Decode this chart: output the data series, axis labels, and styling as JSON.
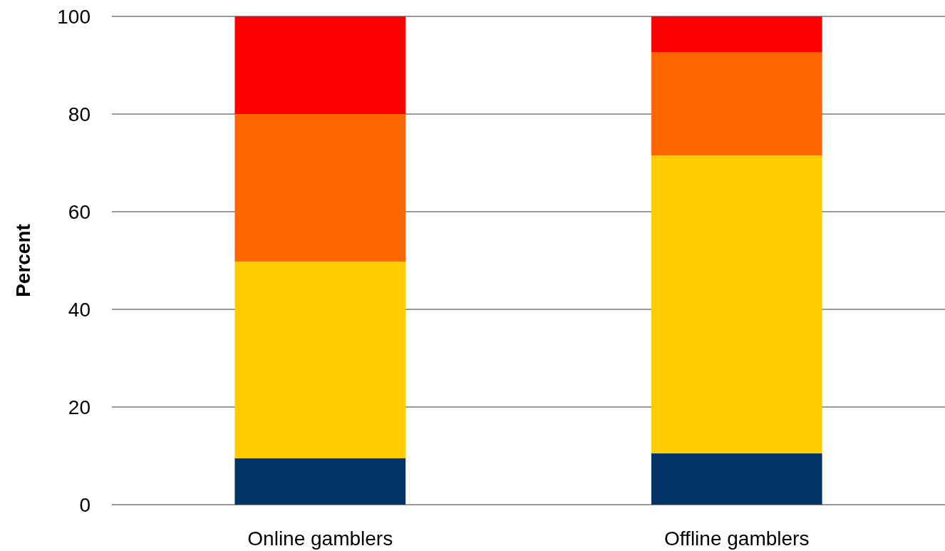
{
  "chart_data": {
    "type": "bar",
    "stacked": true,
    "ylabel": "Percent",
    "categories": [
      "Online gamblers",
      "Offline gamblers"
    ],
    "series": [
      {
        "color": "#003366",
        "values": [
          9.5,
          10.5
        ]
      },
      {
        "color": "#ffcc00",
        "values": [
          40.3,
          61.0
        ]
      },
      {
        "color": "#ff6600",
        "values": [
          30.2,
          21.2
        ]
      },
      {
        "color": "#ff0000",
        "values": [
          20.0,
          7.3
        ]
      }
    ],
    "ylim": [
      0,
      100
    ],
    "yticks": [
      0,
      20,
      40,
      60,
      80,
      100
    ],
    "grid": "y"
  }
}
